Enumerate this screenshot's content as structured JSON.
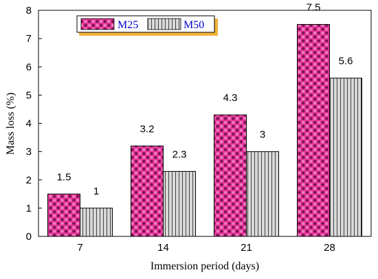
{
  "chart_data": {
    "type": "bar",
    "categories": [
      "7",
      "14",
      "21",
      "28"
    ],
    "series": [
      {
        "name": "M25",
        "values": [
          1.5,
          3.2,
          4.3,
          7.5
        ],
        "color": "#e8359a"
      },
      {
        "name": "M50",
        "values": [
          1.0,
          2.3,
          3.0,
          5.6
        ],
        "color": "#c8c8c8"
      }
    ],
    "data_labels": [
      [
        "1.5",
        "3.2",
        "4.3",
        "7.5"
      ],
      [
        "1",
        "2.3",
        "3",
        "5.6"
      ]
    ],
    "xlabel": "Immersion period (days)",
    "ylabel": "Mass loss (%)",
    "ylim": [
      0,
      8
    ],
    "yticks": [
      "0",
      "1",
      "2",
      "3",
      "4",
      "5",
      "6",
      "7",
      "8"
    ],
    "grid": false,
    "legend_position": "top-left"
  }
}
